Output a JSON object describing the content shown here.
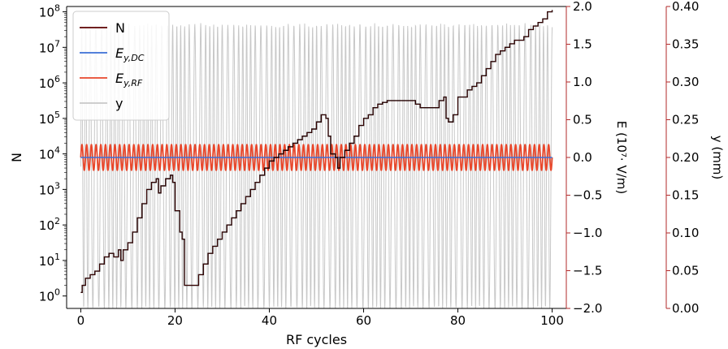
{
  "chart_data": {
    "type": "line",
    "xlabel": "RF cycles",
    "ylabel_left": "N",
    "ylabel_right1": "E (10⁷· V/m)",
    "ylabel_right2": "y (mm)",
    "xlim": [
      -3,
      103
    ],
    "x_ticks": [
      "0",
      "20",
      "40",
      "60",
      "80",
      "100"
    ],
    "y_left": {
      "scale": "log",
      "lim_log10": [
        -0.35,
        8.15
      ],
      "ticks": [
        {
          "base": "10",
          "exp": "0"
        },
        {
          "base": "10",
          "exp": "1"
        },
        {
          "base": "10",
          "exp": "2"
        },
        {
          "base": "10",
          "exp": "3"
        },
        {
          "base": "10",
          "exp": "4"
        },
        {
          "base": "10",
          "exp": "5"
        },
        {
          "base": "10",
          "exp": "6"
        },
        {
          "base": "10",
          "exp": "7"
        },
        {
          "base": "10",
          "exp": "8"
        }
      ]
    },
    "y_right1": {
      "lim": [
        -2.0,
        2.0
      ],
      "ticks": [
        "−2.0",
        "−1.5",
        "−1.0",
        "−0.5",
        "0.0",
        "0.5",
        "1.0",
        "1.5",
        "2.0"
      ]
    },
    "y_right2": {
      "lim": [
        0.0,
        0.4
      ],
      "ticks": [
        "0.00",
        "0.05",
        "0.10",
        "0.15",
        "0.20",
        "0.25",
        "0.30",
        "0.35",
        "0.40"
      ]
    },
    "legend": {
      "placement": "top-left",
      "entries": [
        {
          "label": "N",
          "color": "#5c0000"
        },
        {
          "label": "E",
          "sub": "y,DC",
          "color": "#3b6fd6"
        },
        {
          "label": "E",
          "sub": "y,RF",
          "color": "#e8472b"
        },
        {
          "label": "y",
          "color": "#c8c8c8"
        }
      ]
    },
    "colors": {
      "N": "#5c0000",
      "E_DC": "#3b6fd6",
      "E_RF": "#e8472b",
      "y": "#c8c8c8",
      "right_axis": "#b22a2a",
      "axis": "#000000"
    },
    "series": [
      {
        "name": "N",
        "axis": "left-log10",
        "points": [
          [
            0,
            0.1
          ],
          [
            0.3,
            0.3
          ],
          [
            1,
            0.5
          ],
          [
            2,
            0.6
          ],
          [
            3,
            0.7
          ],
          [
            4,
            0.9
          ],
          [
            5,
            1.1
          ],
          [
            6,
            1.2
          ],
          [
            7,
            1.1
          ],
          [
            8,
            1.3
          ],
          [
            8.5,
            1.0
          ],
          [
            9,
            1.3
          ],
          [
            10,
            1.5
          ],
          [
            11,
            1.8
          ],
          [
            12,
            2.2
          ],
          [
            13,
            2.6
          ],
          [
            14,
            3.0
          ],
          [
            15,
            3.2
          ],
          [
            16,
            3.3
          ],
          [
            16.5,
            2.9
          ],
          [
            17,
            3.1
          ],
          [
            18,
            3.3
          ],
          [
            19,
            3.4
          ],
          [
            19.5,
            3.2
          ],
          [
            20,
            2.4
          ],
          [
            21,
            1.8
          ],
          [
            21.5,
            1.6
          ],
          [
            22,
            0.3
          ],
          [
            23,
            0.3
          ],
          [
            24,
            0.3
          ],
          [
            25,
            0.6
          ],
          [
            26,
            0.9
          ],
          [
            27,
            1.2
          ],
          [
            28,
            1.4
          ],
          [
            29,
            1.6
          ],
          [
            30,
            1.8
          ],
          [
            31,
            2.0
          ],
          [
            32,
            2.2
          ],
          [
            33,
            2.4
          ],
          [
            34,
            2.6
          ],
          [
            35,
            2.8
          ],
          [
            36,
            3.0
          ],
          [
            37,
            3.2
          ],
          [
            38,
            3.4
          ],
          [
            39,
            3.6
          ],
          [
            40,
            3.8
          ],
          [
            41,
            3.9
          ],
          [
            42,
            4.0
          ],
          [
            43,
            4.1
          ],
          [
            44,
            4.2
          ],
          [
            45,
            4.3
          ],
          [
            46,
            4.4
          ],
          [
            47,
            4.5
          ],
          [
            48,
            4.6
          ],
          [
            49,
            4.7
          ],
          [
            50,
            4.9
          ],
          [
            51,
            5.1
          ],
          [
            52,
            5.0
          ],
          [
            52.5,
            4.5
          ],
          [
            53,
            4.0
          ],
          [
            54,
            3.9
          ],
          [
            54.5,
            3.6
          ],
          [
            55,
            3.9
          ],
          [
            56,
            4.1
          ],
          [
            57,
            4.3
          ],
          [
            58,
            4.5
          ],
          [
            59,
            4.8
          ],
          [
            60,
            5.0
          ],
          [
            61,
            5.1
          ],
          [
            62,
            5.3
          ],
          [
            63,
            5.4
          ],
          [
            64,
            5.45
          ],
          [
            65,
            5.5
          ],
          [
            66,
            5.5
          ],
          [
            67,
            5.5
          ],
          [
            68,
            5.5
          ],
          [
            69,
            5.5
          ],
          [
            70,
            5.5
          ],
          [
            71,
            5.4
          ],
          [
            72,
            5.3
          ],
          [
            73,
            5.3
          ],
          [
            74,
            5.3
          ],
          [
            75,
            5.3
          ],
          [
            76,
            5.5
          ],
          [
            77,
            5.6
          ],
          [
            77.5,
            5.0
          ],
          [
            78,
            4.9
          ],
          [
            79,
            5.1
          ],
          [
            80,
            5.6
          ],
          [
            81,
            5.6
          ],
          [
            82,
            5.8
          ],
          [
            83,
            5.9
          ],
          [
            84,
            6.0
          ],
          [
            85,
            6.2
          ],
          [
            86,
            6.4
          ],
          [
            87,
            6.6
          ],
          [
            88,
            6.8
          ],
          [
            89,
            6.9
          ],
          [
            90,
            7.0
          ],
          [
            91,
            7.1
          ],
          [
            92,
            7.2
          ],
          [
            93,
            7.2
          ],
          [
            94,
            7.3
          ],
          [
            95,
            7.5
          ],
          [
            96,
            7.6
          ],
          [
            97,
            7.7
          ],
          [
            98,
            7.8
          ],
          [
            99,
            8.0
          ],
          [
            100,
            8.05
          ]
        ]
      },
      {
        "name": "E_y,DC",
        "axis": "right1",
        "x_range": [
          0,
          100
        ],
        "value": 0.0
      },
      {
        "name": "E_y,RF",
        "axis": "right1",
        "x_range": [
          0,
          100
        ],
        "amplitude": 0.17,
        "period": 1.0
      },
      {
        "name": "y",
        "axis": "right2",
        "x_range": [
          0,
          100
        ],
        "min": 0.0,
        "max": 0.376,
        "note_visible": "dense oscillation filling full axis range"
      }
    ]
  }
}
